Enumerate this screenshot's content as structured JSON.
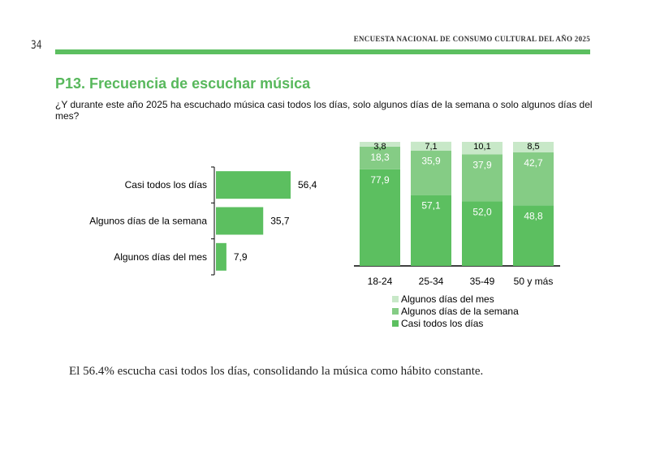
{
  "page": {
    "number": "34",
    "running_header": "ENCUESTA NACIONAL DE CONSUMO CULTURAL DEL AÑO 2025",
    "title": "P13. Frecuencia de escuchar música",
    "question": "¿Y durante este año 2025 ha escuchado música casi todos los días, solo algunos días de la semana o solo algunos días del mes?",
    "caption": "El 56.4% escucha casi todos los días, consolidando la música como hábito constante.",
    "colors": {
      "accent": "#5cbf60",
      "dark": "#5cbf60",
      "mid": "#85cc85",
      "light": "#c8e8c8",
      "title": "#58b85c"
    }
  },
  "chart_data": [
    {
      "type": "bar",
      "orientation": "horizontal",
      "categories": [
        "Casi todos los días",
        "Algunos días de la semana",
        "Algunos días del mes"
      ],
      "values": [
        56.4,
        35.7,
        7.9
      ],
      "value_labels": [
        "56,4",
        "35,7",
        "7,9"
      ],
      "xlim": [
        0,
        70
      ]
    },
    {
      "type": "bar",
      "stacked": true,
      "categories": [
        "18-24",
        "25-34",
        "35-49",
        "50 y más"
      ],
      "series": [
        {
          "name": "Casi todos los días",
          "values": [
            77.9,
            57.1,
            52.0,
            48.8
          ],
          "labels": [
            "77,9",
            "57,1",
            "52,0",
            "48,8"
          ],
          "color": "#5cbf60"
        },
        {
          "name": "Algunos días de la semana",
          "values": [
            18.3,
            35.9,
            37.9,
            42.7
          ],
          "labels": [
            "18,3",
            "35,9",
            "37,9",
            "42,7"
          ],
          "color": "#85cc85"
        },
        {
          "name": "Algunos días del mes",
          "values": [
            3.8,
            7.1,
            10.1,
            8.5
          ],
          "labels": [
            "3,8",
            "7,1",
            "10,1",
            "8,5"
          ],
          "color": "#c8e8c8"
        }
      ],
      "legend": [
        "Algunos días del mes",
        "Algunos días de la semana",
        "Casi todos los días"
      ],
      "ylim": [
        0,
        100
      ]
    }
  ]
}
